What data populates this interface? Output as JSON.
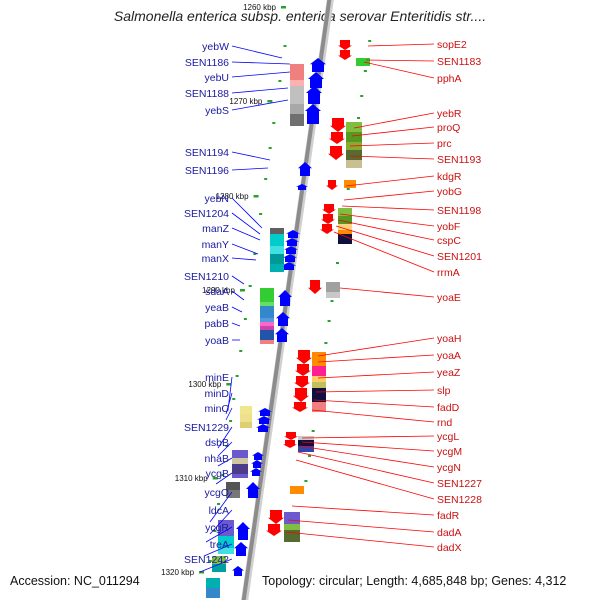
{
  "title": "Salmonella enterica subsp. enterica serovar Enteritidis str....",
  "footer": {
    "accession": "Accession: NC_011294",
    "topology": "Topology: circular; Length: 4,685,848 bp; Genes: 4,312"
  },
  "colors": {
    "forward": "#0000ff",
    "reverse": "#ff0000",
    "tick": "#2ca02c",
    "axis": "#8c8c8c"
  },
  "kbp_labels": [
    "1260 kbp",
    "1270 kbp",
    "1280 kbp",
    "1290 kbp",
    "1300 kbp",
    "1310 kbp",
    "1320 kbp"
  ],
  "left_genes": [
    "yebW",
    "SEN1186",
    "yebU",
    "SEN1188",
    "yebS",
    "SEN1194",
    "SEN1196",
    "yebN",
    "SEN1204",
    "manZ",
    "manY",
    "manX",
    "SEN1210",
    "sdaA",
    "yeaB",
    "pabB",
    "yoaB",
    "minE",
    "minD",
    "minC",
    "SEN1229",
    "dsbB",
    "nhaB",
    "ycgB",
    "ycgO",
    "ldcA",
    "ycgR",
    "treA",
    "SEN1242"
  ],
  "right_genes": [
    "sopE2",
    "SEN1183",
    "pphA",
    "yebR",
    "proQ",
    "prc",
    "SEN1193",
    "kdgR",
    "yobG",
    "SEN1198",
    "yobF",
    "cspC",
    "SEN1201",
    "rrmA",
    "yoaE",
    "yoaH",
    "yoaA",
    "yeaZ",
    "slp",
    "fadD",
    "rnd",
    "ycgL",
    "ycgM",
    "ycgN",
    "SEN1227",
    "SEN1228",
    "fadR",
    "dadA",
    "dadX"
  ]
}
